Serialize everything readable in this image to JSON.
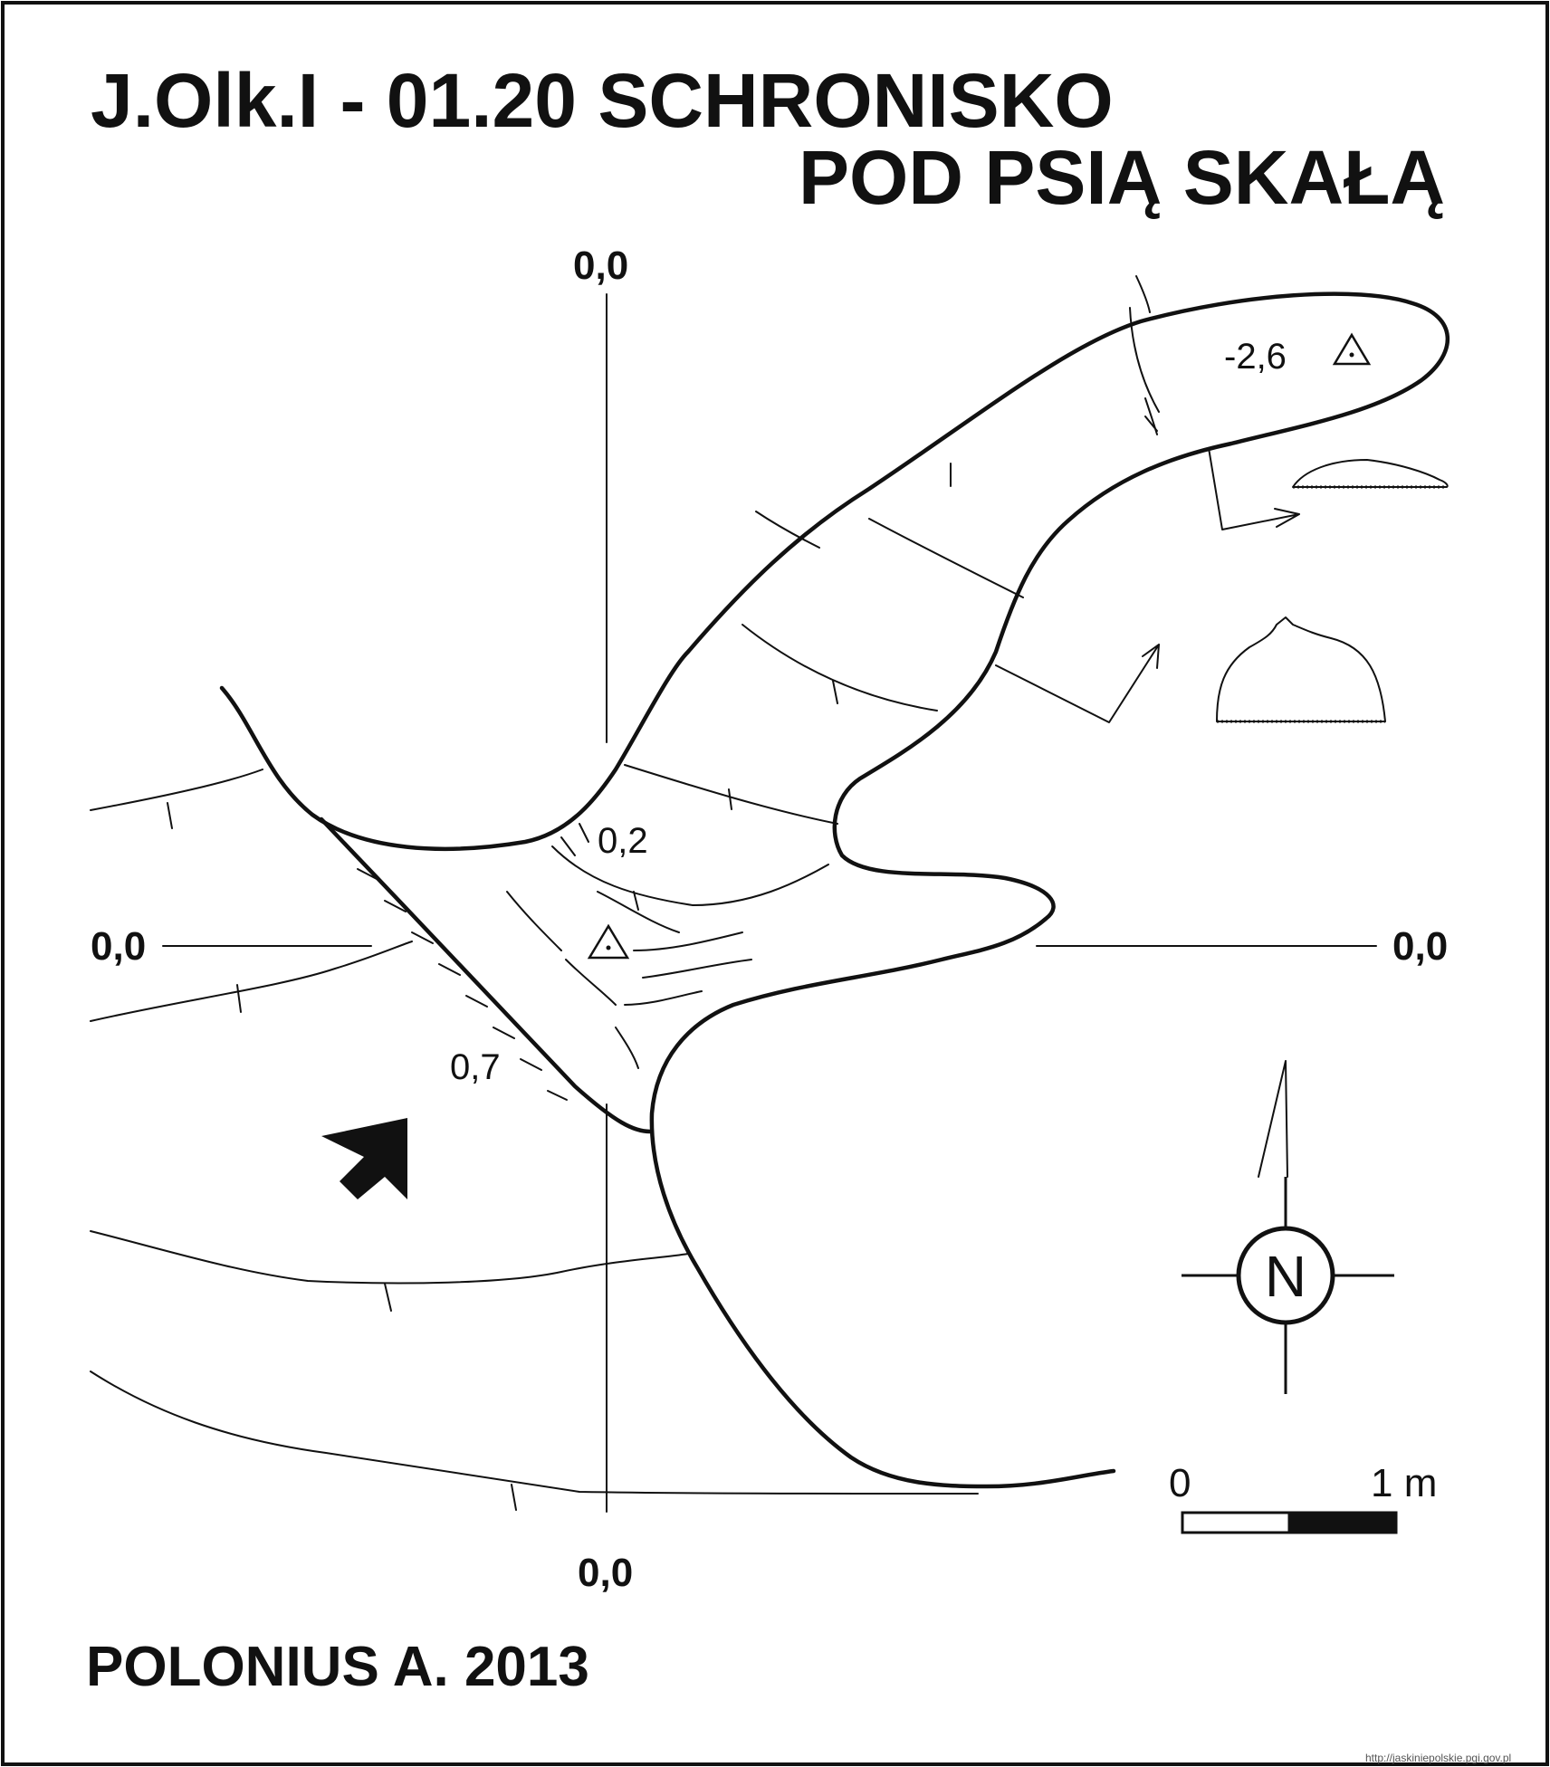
{
  "title": {
    "line1": "J.Olk.I - 01.20  SCHRONISKO",
    "line2": "POD PSIĄ SKAŁĄ"
  },
  "axis_labels": {
    "top": "0,0",
    "bottom": "0,0",
    "left": "0,0",
    "right": "0,0"
  },
  "depth_labels": {
    "end": "-2,6",
    "middle_upper": "0,2",
    "middle_lower": "0,7"
  },
  "scale_bar": {
    "start_label": "0",
    "end_label": "1 m"
  },
  "north_arrow": {
    "label": "N"
  },
  "credit": "POLONIUS A. 2013",
  "source_url": "http://jaskiniepolskie.pgi.gov.pl",
  "colors": {
    "ink": "#111111",
    "background": "#ffffff"
  }
}
